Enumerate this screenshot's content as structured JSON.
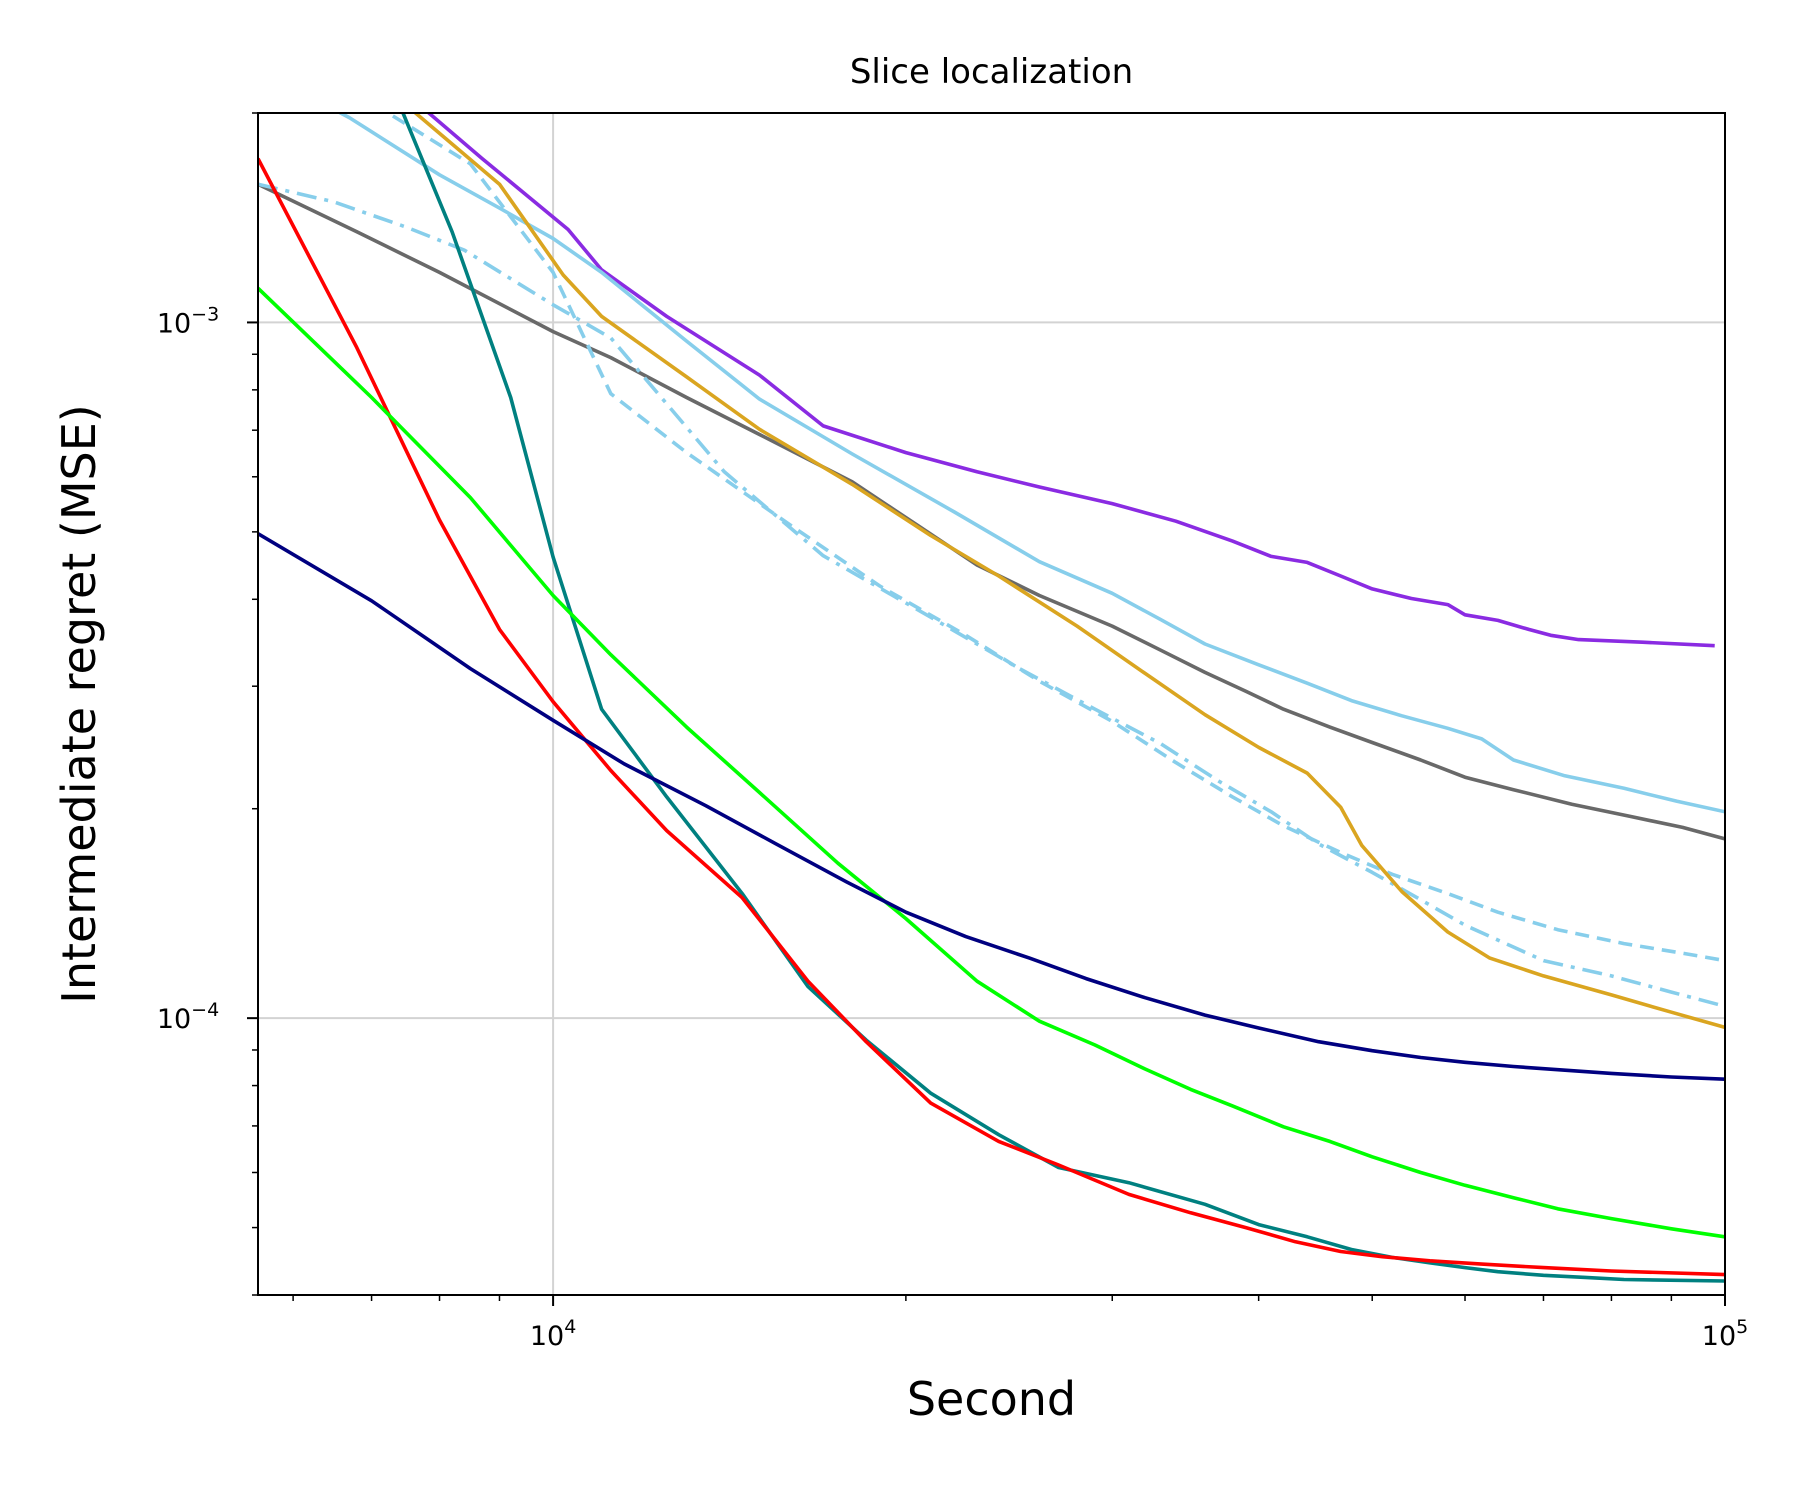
{
  "chart_data": {
    "type": "line",
    "title": "Slice localization",
    "xlabel": "Second",
    "ylabel": "Intermediate regret (MSE)",
    "xscale": "log",
    "yscale": "log",
    "xlim": [
      5600,
      100000
    ],
    "ylim": [
      4e-05,
      0.002
    ],
    "grid": true,
    "x_major_ticks": [
      {
        "value": 10000,
        "base": "10",
        "exp": "4"
      },
      {
        "value": 100000,
        "base": "10",
        "exp": "5"
      }
    ],
    "y_major_ticks": [
      {
        "value": 0.0001,
        "base": "10",
        "exp": "−4"
      },
      {
        "value": 0.001,
        "base": "10",
        "exp": "−3"
      }
    ],
    "series": [
      {
        "name": "purple",
        "color": "#8a2be2",
        "dash": "solid",
        "points": [
          [
            7700,
            0.00205
          ],
          [
            8700,
            0.00172
          ],
          [
            10300,
            0.00136
          ],
          [
            11000,
            0.00119
          ],
          [
            12500,
            0.00102
          ],
          [
            15000,
            0.00084
          ],
          [
            17000,
            0.00071
          ],
          [
            20000,
            0.00065
          ],
          [
            23000,
            0.00061
          ],
          [
            26000,
            0.00058
          ],
          [
            30000,
            0.000549
          ],
          [
            34000,
            0.000518
          ],
          [
            38000,
            0.000485
          ],
          [
            41000,
            0.000461
          ],
          [
            44000,
            0.000452
          ],
          [
            47000,
            0.000432
          ],
          [
            50000,
            0.000414
          ],
          [
            54000,
            0.000401
          ],
          [
            58000,
            0.000393
          ],
          [
            60000,
            0.00038
          ],
          [
            64000,
            0.000373
          ],
          [
            68000,
            0.000362
          ],
          [
            71000,
            0.000355
          ],
          [
            75000,
            0.00035
          ],
          [
            85000,
            0.000347
          ],
          [
            98000,
            0.000343
          ]
        ]
      },
      {
        "name": "gray",
        "color": "#696969",
        "dash": "solid",
        "points": [
          [
            5600,
            0.00158
          ],
          [
            6800,
            0.00135
          ],
          [
            8000,
            0.00118
          ],
          [
            10000,
            0.00097
          ],
          [
            11200,
            0.00089
          ],
          [
            13000,
            0.00078
          ],
          [
            15000,
            0.00069
          ],
          [
            18000,
            0.00059
          ],
          [
            20500,
            0.00051
          ],
          [
            23000,
            0.000448
          ],
          [
            26000,
            0.000405
          ],
          [
            30000,
            0.000366
          ],
          [
            33000,
            0.000338
          ],
          [
            36000,
            0.000314
          ],
          [
            39000,
            0.000295
          ],
          [
            42000,
            0.000278
          ],
          [
            46000,
            0.000262
          ],
          [
            50000,
            0.000249
          ],
          [
            55000,
            0.000235
          ],
          [
            60000,
            0.000222
          ],
          [
            66000,
            0.000213
          ],
          [
            74000,
            0.000203
          ],
          [
            83000,
            0.000195
          ],
          [
            92000,
            0.000188
          ],
          [
            100000,
            0.000181
          ]
        ]
      },
      {
        "name": "skyblue-solid",
        "color": "#87ceeb",
        "dash": "solid",
        "points": [
          [
            5600,
            0.00231
          ],
          [
            6700,
            0.00197
          ],
          [
            8000,
            0.00163
          ],
          [
            9000,
            0.00146
          ],
          [
            10000,
            0.00132
          ],
          [
            11000,
            0.00118
          ],
          [
            13000,
            0.00094
          ],
          [
            15000,
            0.000776
          ],
          [
            18000,
            0.000647
          ],
          [
            22000,
            0.000534
          ],
          [
            26000,
            0.000453
          ],
          [
            30000,
            0.000408
          ],
          [
            33000,
            0.000374
          ],
          [
            36000,
            0.000345
          ],
          [
            40000,
            0.000322
          ],
          [
            44000,
            0.000303
          ],
          [
            48000,
            0.000286
          ],
          [
            53000,
            0.000272
          ],
          [
            58000,
            0.000261
          ],
          [
            62000,
            0.000252
          ],
          [
            66000,
            0.000235
          ],
          [
            73000,
            0.000223
          ],
          [
            82000,
            0.000214
          ],
          [
            91000,
            0.000205
          ],
          [
            100000,
            0.000198
          ]
        ]
      },
      {
        "name": "skyblue-dashdot",
        "color": "#87ceeb",
        "dash": "dashdot",
        "points": [
          [
            5600,
            0.00158
          ],
          [
            6500,
            0.00149
          ],
          [
            7500,
            0.00137
          ],
          [
            8400,
            0.00127
          ],
          [
            10000,
            0.00106
          ],
          [
            11200,
            0.00095
          ],
          [
            14000,
            0.00061
          ],
          [
            17000,
            0.000462
          ],
          [
            21000,
            0.000377
          ],
          [
            25000,
            0.000318
          ],
          [
            29000,
            0.000278
          ],
          [
            33000,
            0.000248
          ],
          [
            37000,
            0.000219
          ],
          [
            41000,
            0.000198
          ],
          [
            45000,
            0.000178
          ],
          [
            50000,
            0.000162
          ],
          [
            55000,
            0.000148
          ],
          [
            60000,
            0.000136
          ],
          [
            65000,
            0.000128
          ],
          [
            70000,
            0.000121
          ],
          [
            80000,
            0.000115
          ],
          [
            90000,
            0.000109
          ],
          [
            100000,
            0.000104
          ]
        ]
      },
      {
        "name": "skyblue-dashed",
        "color": "#87ceeb",
        "dash": "dashed",
        "points": [
          [
            7300,
            0.00198
          ],
          [
            8500,
            0.00169
          ],
          [
            10000,
            0.00118
          ],
          [
            11200,
            0.00079
          ],
          [
            13000,
            0.00065
          ],
          [
            16000,
            0.000509
          ],
          [
            19000,
            0.000418
          ],
          [
            22500,
            0.000355
          ],
          [
            26000,
            0.000305
          ],
          [
            30000,
            0.000267
          ],
          [
            34000,
            0.000233
          ],
          [
            38000,
            0.000208
          ],
          [
            42000,
            0.000189
          ],
          [
            47000,
            0.000173
          ],
          [
            52000,
            0.000161
          ],
          [
            58000,
            0.000151
          ],
          [
            64000,
            0.000142
          ],
          [
            72000,
            0.000134
          ],
          [
            82000,
            0.000128
          ],
          [
            92000,
            0.000124
          ],
          [
            100000,
            0.000121
          ]
        ]
      },
      {
        "name": "goldenrod",
        "color": "#daa520",
        "dash": "solid",
        "points": [
          [
            7500,
            0.00205
          ],
          [
            9000,
            0.00158
          ],
          [
            10200,
            0.00117
          ],
          [
            11000,
            0.00102
          ],
          [
            13000,
            0.000835
          ],
          [
            15000,
            0.000702
          ],
          [
            18000,
            0.000585
          ],
          [
            21000,
            0.000494
          ],
          [
            24000,
            0.000432
          ],
          [
            28000,
            0.000366
          ],
          [
            32000,
            0.000313
          ],
          [
            36000,
            0.000273
          ],
          [
            40000,
            0.000245
          ],
          [
            44000,
            0.000225
          ],
          [
            47000,
            0.000201
          ],
          [
            49000,
            0.000177
          ],
          [
            53000,
            0.000152
          ],
          [
            58000,
            0.000133
          ],
          [
            63000,
            0.000122
          ],
          [
            70000,
            0.000115
          ],
          [
            80000,
            0.000108
          ],
          [
            90000,
            0.000102
          ],
          [
            100000,
            9.7e-05
          ]
        ]
      },
      {
        "name": "teal",
        "color": "#008080",
        "dash": "solid",
        "points": [
          [
            7400,
            0.00205
          ],
          [
            8200,
            0.00135
          ],
          [
            9200,
            0.00078
          ],
          [
            10000,
            0.00046
          ],
          [
            11000,
            0.000278
          ],
          [
            12500,
            0.000208
          ],
          [
            14500,
            0.000151
          ],
          [
            16500,
            0.000111
          ],
          [
            18500,
            9.3e-05
          ],
          [
            21000,
            7.8e-05
          ],
          [
            24000,
            6.8e-05
          ],
          [
            27000,
            6.1e-05
          ],
          [
            31000,
            5.8e-05
          ],
          [
            36000,
            5.4e-05
          ],
          [
            40000,
            5.05e-05
          ],
          [
            44000,
            4.85e-05
          ],
          [
            48000,
            4.65e-05
          ],
          [
            52000,
            4.53e-05
          ],
          [
            56000,
            4.45e-05
          ],
          [
            60000,
            4.38e-05
          ],
          [
            64000,
            4.32e-05
          ],
          [
            70000,
            4.27e-05
          ],
          [
            76000,
            4.24e-05
          ],
          [
            82000,
            4.21e-05
          ],
          [
            100000,
            4.19e-05
          ]
        ]
      },
      {
        "name": "red",
        "color": "#ff0000",
        "dash": "solid",
        "points": [
          [
            5600,
            0.00172
          ],
          [
            6800,
            0.00092
          ],
          [
            8000,
            0.00052
          ],
          [
            9000,
            0.000362
          ],
          [
            10000,
            0.000285
          ],
          [
            11200,
            0.000227
          ],
          [
            12500,
            0.000186
          ],
          [
            14500,
            0.000149
          ],
          [
            16500,
            0.000113
          ],
          [
            18500,
            9.25e-05
          ],
          [
            21000,
            7.55e-05
          ],
          [
            24000,
            6.65e-05
          ],
          [
            27000,
            6.15e-05
          ],
          [
            31000,
            5.58e-05
          ],
          [
            35000,
            5.25e-05
          ],
          [
            39000,
            5e-05
          ],
          [
            43000,
            4.77e-05
          ],
          [
            47000,
            4.62e-05
          ],
          [
            51000,
            4.54e-05
          ],
          [
            56000,
            4.48e-05
          ],
          [
            62000,
            4.43e-05
          ],
          [
            70000,
            4.38e-05
          ],
          [
            80000,
            4.33e-05
          ],
          [
            100000,
            4.28e-05
          ]
        ]
      },
      {
        "name": "lime",
        "color": "#00ff00",
        "dash": "solid",
        "points": [
          [
            5600,
            0.00112
          ],
          [
            7000,
            0.00078
          ],
          [
            8500,
            0.00056
          ],
          [
            10000,
            0.000405
          ],
          [
            11200,
            0.000333
          ],
          [
            13000,
            0.000262
          ],
          [
            15000,
            0.000211
          ],
          [
            17500,
            0.000167
          ],
          [
            20000,
            0.000139
          ],
          [
            23000,
            0.000113
          ],
          [
            26000,
            9.9e-05
          ],
          [
            29000,
            9.15e-05
          ],
          [
            32000,
            8.45e-05
          ],
          [
            35000,
            7.9e-05
          ],
          [
            38000,
            7.48e-05
          ],
          [
            42000,
            6.98e-05
          ],
          [
            46000,
            6.65e-05
          ],
          [
            50000,
            6.32e-05
          ],
          [
            55000,
            6e-05
          ],
          [
            60000,
            5.75e-05
          ],
          [
            66000,
            5.52e-05
          ],
          [
            72000,
            5.32e-05
          ],
          [
            80000,
            5.15e-05
          ],
          [
            90000,
            4.98e-05
          ],
          [
            100000,
            4.85e-05
          ]
        ]
      },
      {
        "name": "navy",
        "color": "#000080",
        "dash": "solid",
        "points": [
          [
            5600,
            0.000497
          ],
          [
            7000,
            0.000398
          ],
          [
            8500,
            0.000318
          ],
          [
            10000,
            0.000268
          ],
          [
            11500,
            0.000232
          ],
          [
            13500,
            0.000202
          ],
          [
            15500,
            0.000178
          ],
          [
            17800,
            0.000157
          ],
          [
            20000,
            0.000142
          ],
          [
            22500,
            0.000131
          ],
          [
            25500,
            0.000122
          ],
          [
            28500,
            0.000114
          ],
          [
            32000,
            0.000107
          ],
          [
            36000,
            0.000101
          ],
          [
            40000,
            9.68e-05
          ],
          [
            45000,
            9.25e-05
          ],
          [
            50000,
            8.98e-05
          ],
          [
            55000,
            8.78e-05
          ],
          [
            60000,
            8.64e-05
          ],
          [
            66000,
            8.52e-05
          ],
          [
            72000,
            8.43e-05
          ],
          [
            80000,
            8.33e-05
          ],
          [
            90000,
            8.23e-05
          ],
          [
            100000,
            8.17e-05
          ]
        ]
      }
    ]
  }
}
